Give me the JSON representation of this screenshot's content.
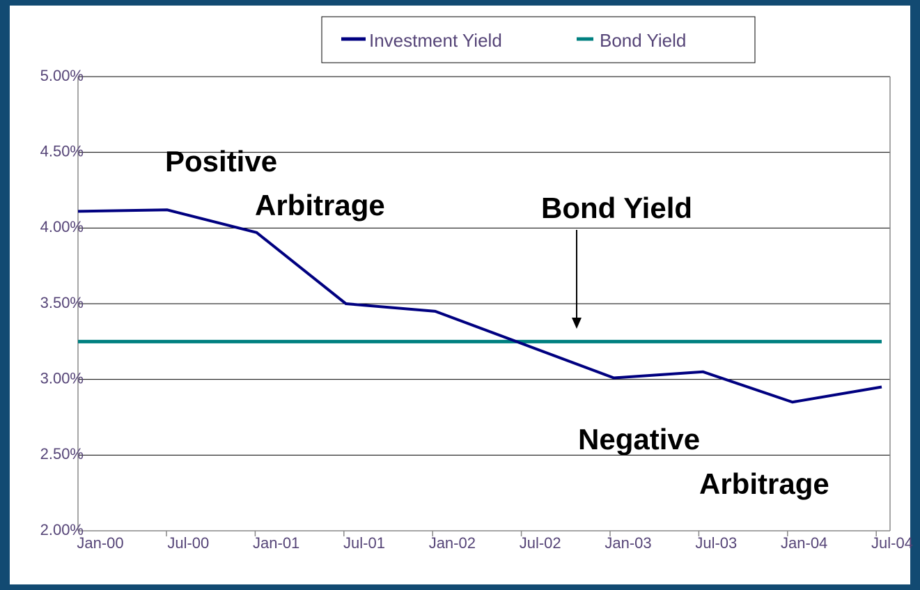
{
  "chart_data": {
    "type": "line",
    "categories": [
      "Jan-00",
      "Jul-00",
      "Jan-01",
      "Jul-01",
      "Jan-02",
      "Jul-02",
      "Jan-03",
      "Jul-03",
      "Jan-04",
      "Jul-04"
    ],
    "series": [
      {
        "name": "Investment Yield",
        "color": "#000080",
        "values": [
          4.11,
          4.12,
          3.97,
          3.5,
          3.45,
          3.23,
          3.01,
          3.05,
          2.85,
          2.95
        ]
      },
      {
        "name": "Bond Yield",
        "color": "#008080",
        "values": [
          3.25,
          3.25,
          3.25,
          3.25,
          3.25,
          3.25,
          3.25,
          3.25,
          3.25,
          3.25
        ]
      }
    ],
    "ylim": [
      2,
      5
    ],
    "yticks": [
      {
        "value": 2,
        "label": "2.00%"
      },
      {
        "value": 2.5,
        "label": "2.50%"
      },
      {
        "value": 3,
        "label": "3.00%"
      },
      {
        "value": 3.5,
        "label": "3.50%"
      },
      {
        "value": 4,
        "label": "4.00%"
      },
      {
        "value": 4.5,
        "label": "4.50%"
      },
      {
        "value": 5,
        "label": "5.00%"
      }
    ],
    "grid": true,
    "legend": "top",
    "annotations": [
      "Positive",
      "Arbitrage",
      "Bond Yield",
      "Negative",
      "Arbitrage"
    ]
  }
}
